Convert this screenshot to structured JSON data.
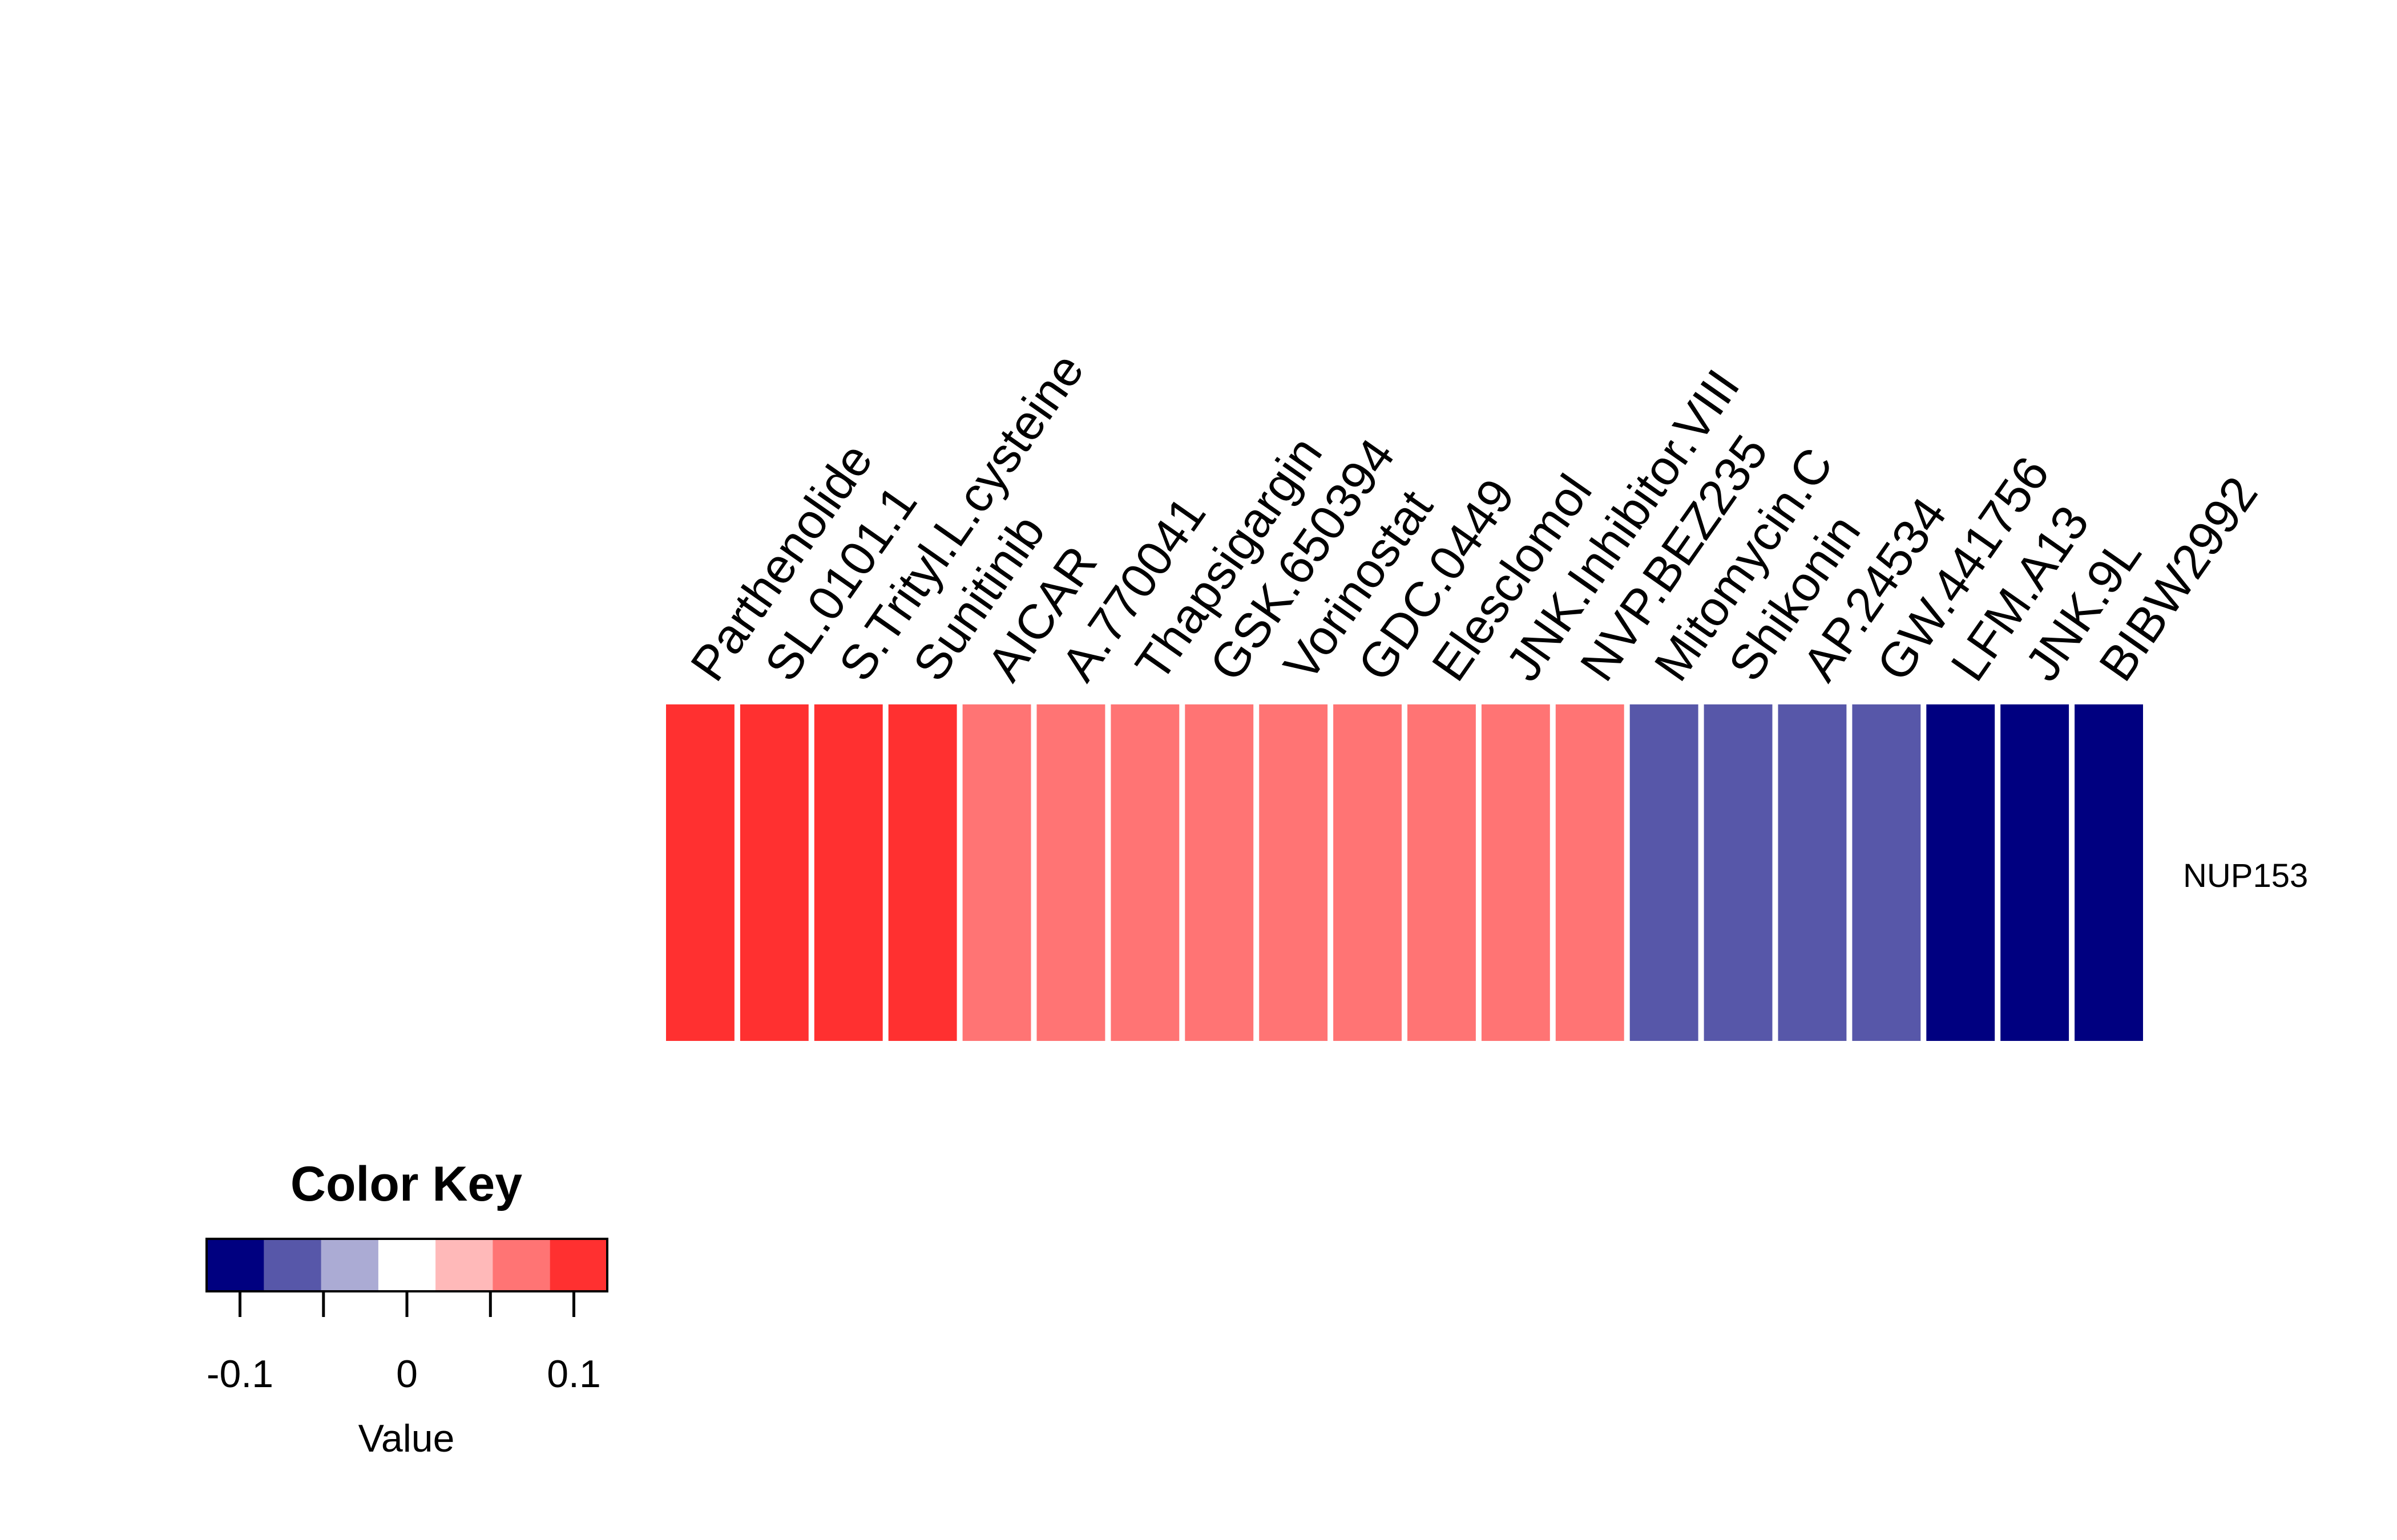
{
  "chart_data": {
    "type": "heatmap",
    "rows": [
      "NUP153"
    ],
    "columns": [
      "Parthenolide",
      "SL.0101.1",
      "S.Trityl.L.cysteine",
      "Sunitinib",
      "AICAR",
      "A.770041",
      "Thapsigargin",
      "GSK.650394",
      "Vorinostat",
      "GDC.0449",
      "Elesclomol",
      "JNK.Inhibitor.VIII",
      "NVP.BEZ235",
      "Mitomycin.C",
      "Shikonin",
      "AP.24534",
      "GW.441756",
      "LFM.A13",
      "JNK.9L",
      "BIBW2992"
    ],
    "values": [
      [
        0.1,
        0.1,
        0.1,
        0.1,
        0.07,
        0.07,
        0.07,
        0.07,
        0.07,
        0.07,
        0.07,
        0.07,
        0.07,
        -0.07,
        -0.07,
        -0.07,
        -0.07,
        -0.1,
        -0.1,
        -0.1
      ]
    ],
    "color_key": {
      "title": "Color Key",
      "xlabel": "Value",
      "range": [
        -0.12,
        0.12
      ],
      "bin_colors": [
        "#000080",
        "#5757A9",
        "#ABABD4",
        "#FFFFFF",
        "#FFB9B9",
        "#FF7474",
        "#FF3030"
      ],
      "ticks": [
        -0.1,
        -0.05,
        0,
        0.05,
        0.1
      ],
      "tick_labels": [
        "-0.1",
        "",
        "0",
        "",
        "0.1"
      ]
    }
  }
}
